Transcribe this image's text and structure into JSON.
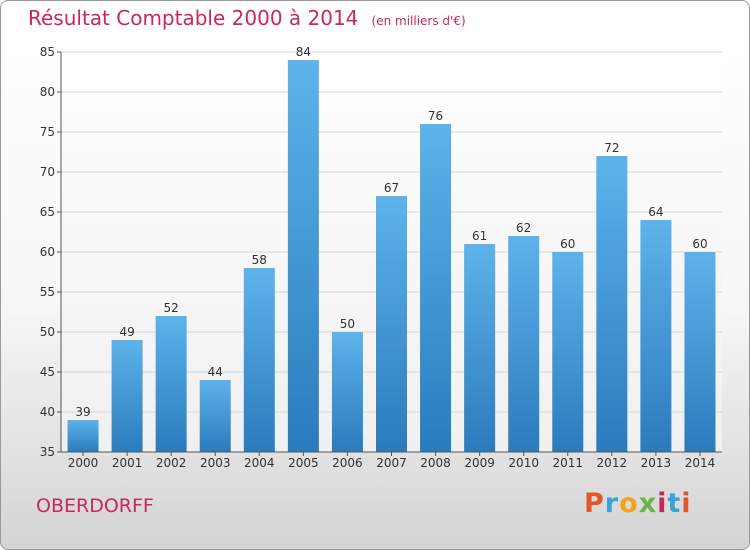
{
  "chart_data": {
    "type": "bar",
    "title": "Résultat Comptable 2000 à 2014",
    "subtitle": "(en milliers d'€)",
    "categories": [
      "2000",
      "2001",
      "2002",
      "2003",
      "2004",
      "2005",
      "2006",
      "2007",
      "2008",
      "2009",
      "2010",
      "2011",
      "2012",
      "2013",
      "2014"
    ],
    "values": [
      39,
      49,
      52,
      44,
      58,
      84,
      50,
      67,
      76,
      61,
      62,
      60,
      72,
      64,
      60
    ],
    "ylim": [
      35,
      85
    ],
    "yticks": [
      35,
      40,
      45,
      50,
      55,
      60,
      65,
      70,
      75,
      80,
      85
    ],
    "grid": "horizontal",
    "bar_color_top": "#5eb3ea",
    "bar_color_bottom": "#2a7bbd"
  },
  "footer": {
    "commune": "OBERDORFF",
    "brand": "Proxiti",
    "brand_colors": [
      "#e2562a",
      "#3aa3d8",
      "#f2a31b",
      "#6ab547",
      "#c8285a",
      "#3aa3d8",
      "#e2562a"
    ]
  },
  "colors": {
    "title": "#c8285a",
    "axis_text": "#333333"
  }
}
